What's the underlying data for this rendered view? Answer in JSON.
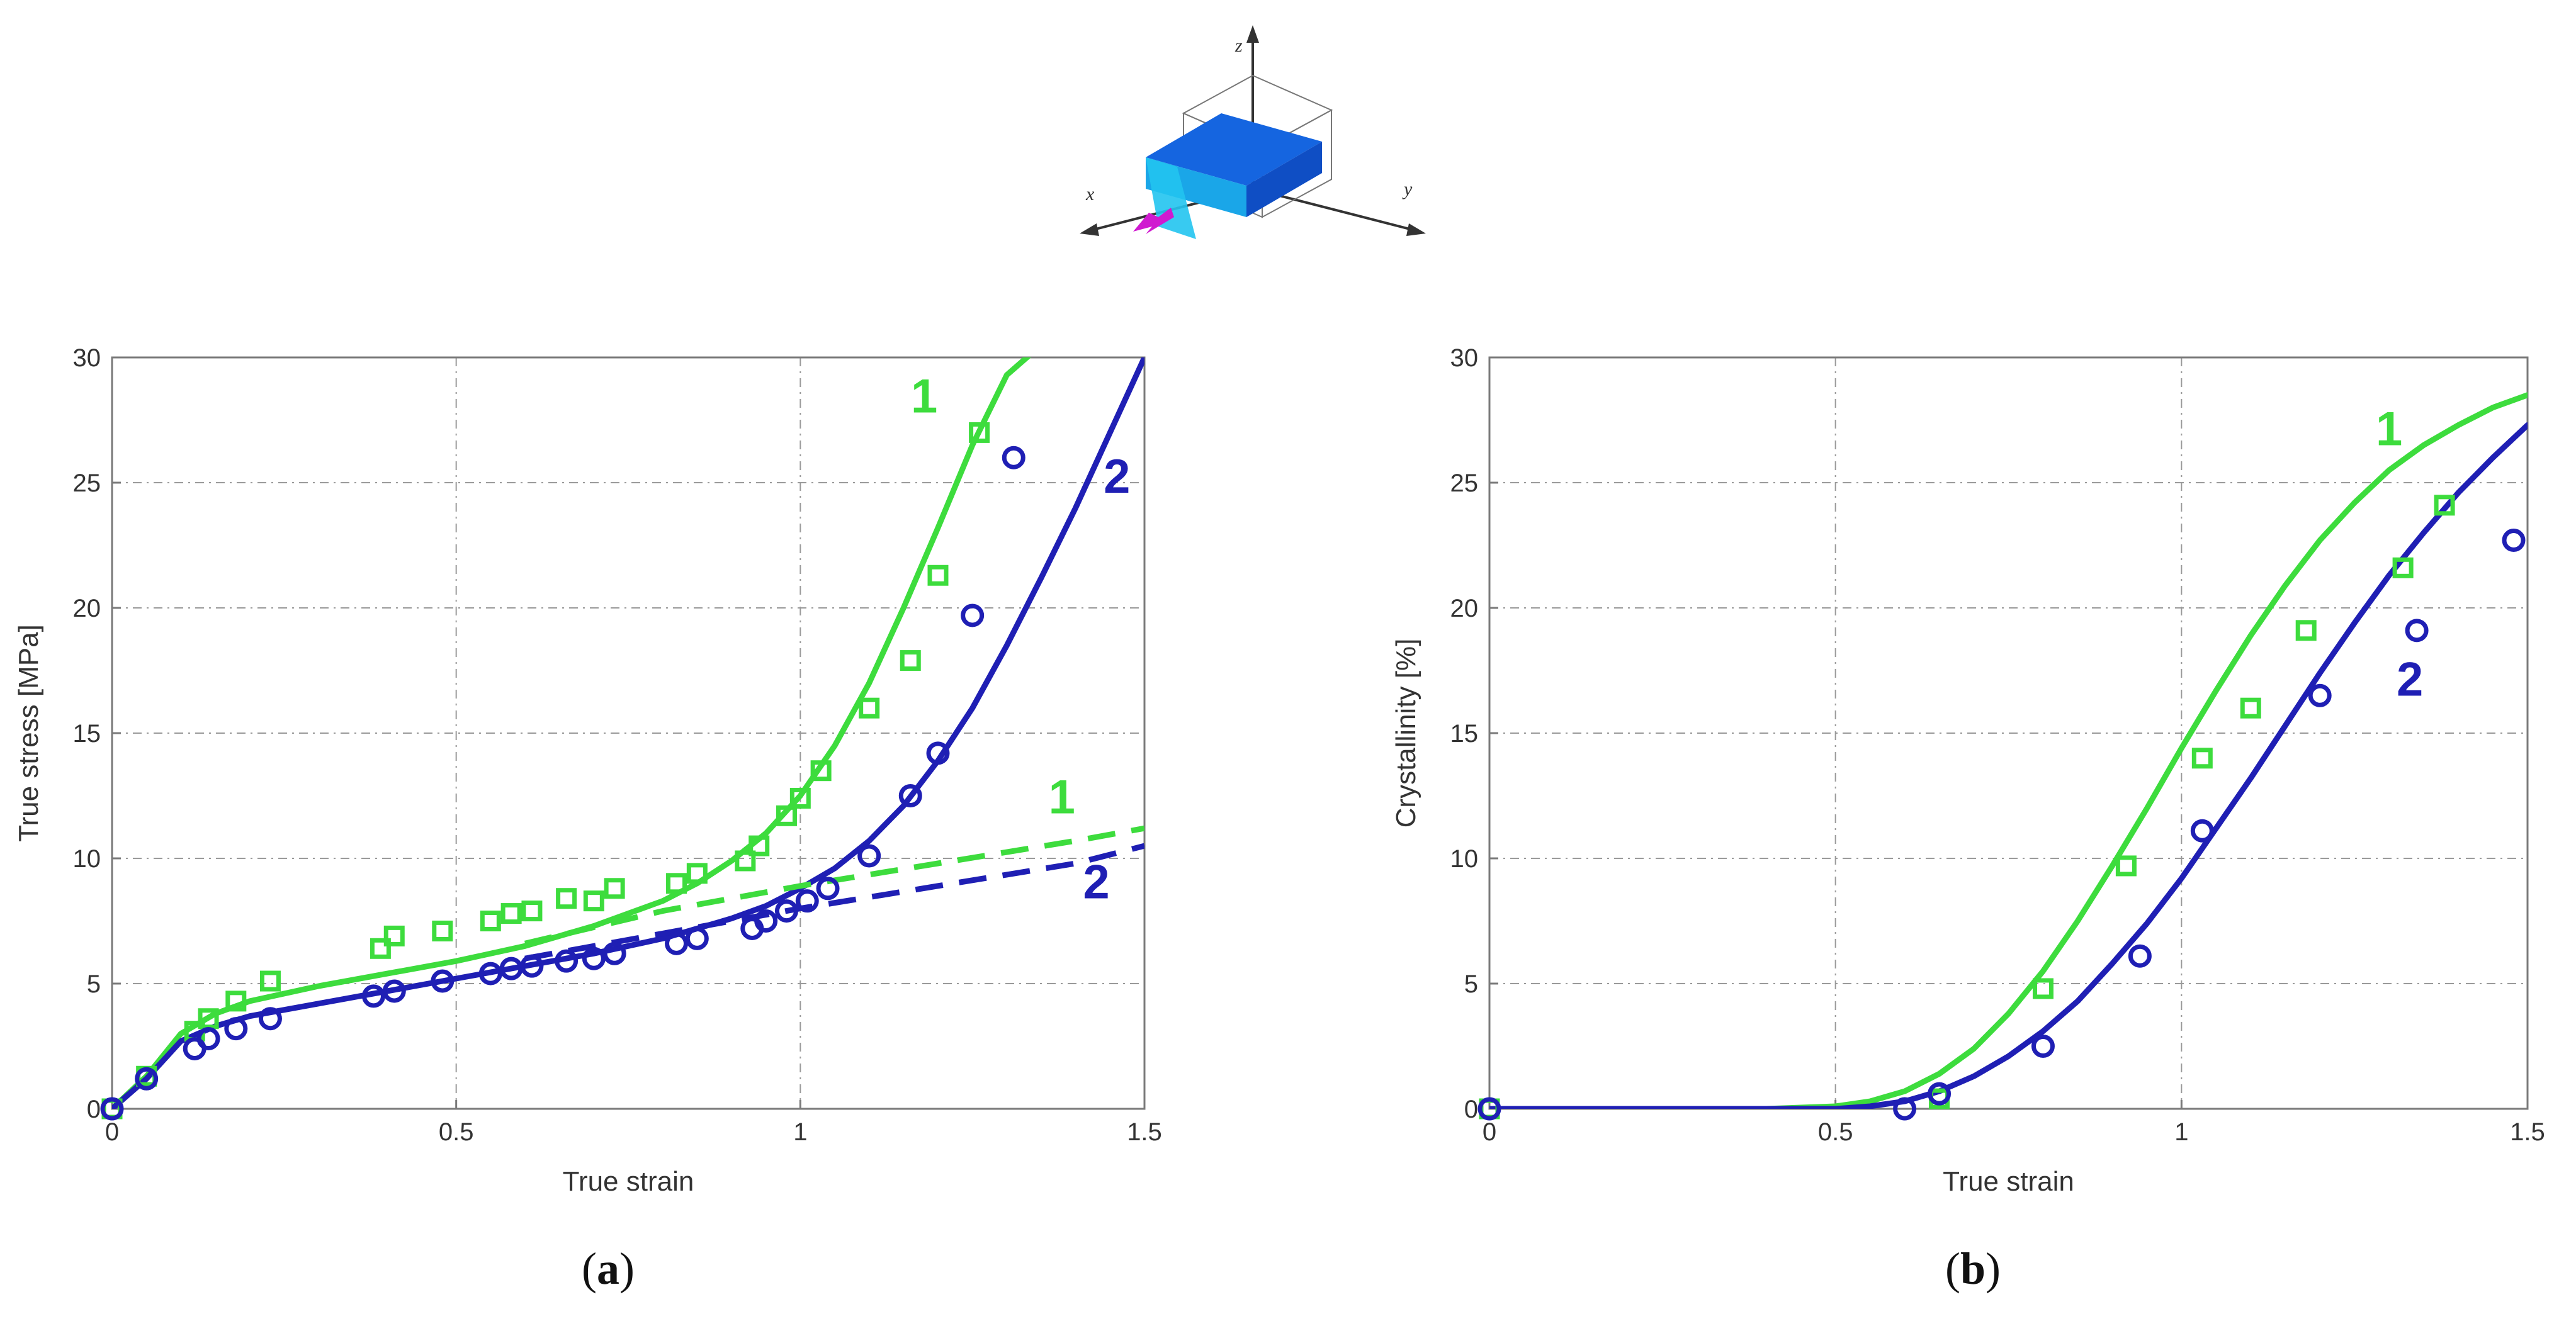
{
  "colors": {
    "green": "#3ddc3d",
    "blue": "#1f1fb4",
    "grid": "#9a9a9a",
    "frame": "#7a7a7a",
    "block_front": "#1aa6e8",
    "block_top": "#1565e0",
    "arrow": "#d01ad0"
  },
  "inset": {
    "axis_labels": {
      "x": "x",
      "y": "y",
      "z": "z"
    },
    "arrow_icon": "magenta-loading-arrow"
  },
  "chart_data": [
    {
      "type": "line",
      "caption": "(a)",
      "caption_letter": "a",
      "title": "",
      "xlabel": "True strain",
      "ylabel": "True stress [MPa]",
      "xlim": [
        0,
        1.5
      ],
      "ylim": [
        0,
        30
      ],
      "xticks": [
        0,
        0.5,
        1,
        1.5
      ],
      "xtick_labels": [
        "0",
        "0.5",
        "1",
        "1.5"
      ],
      "yticks": [
        0,
        5,
        10,
        15,
        20,
        25,
        30
      ],
      "ytick_labels": [
        "0",
        "5",
        "10",
        "15",
        "20",
        "25",
        "30"
      ],
      "grid": true,
      "series": [
        {
          "label": "1",
          "color": "green",
          "style": "solid",
          "x": [
            0,
            0.05,
            0.1,
            0.15,
            0.2,
            0.3,
            0.4,
            0.5,
            0.6,
            0.7,
            0.8,
            0.85,
            0.9,
            0.95,
            1.0,
            1.05,
            1.1,
            1.15,
            1.2,
            1.25,
            1.3,
            1.35
          ],
          "y": [
            0,
            1.3,
            3.0,
            3.8,
            4.3,
            4.9,
            5.4,
            5.9,
            6.5,
            7.3,
            8.3,
            9.0,
            9.9,
            11.0,
            12.5,
            14.5,
            17.0,
            20.0,
            23.2,
            26.5,
            29.3,
            30.5
          ]
        },
        {
          "label": "2",
          "color": "blue",
          "style": "solid",
          "x": [
            0,
            0.05,
            0.1,
            0.15,
            0.2,
            0.3,
            0.4,
            0.5,
            0.6,
            0.7,
            0.8,
            0.9,
            0.95,
            1.0,
            1.05,
            1.1,
            1.15,
            1.2,
            1.25,
            1.3,
            1.35,
            1.4,
            1.45,
            1.5
          ],
          "y": [
            0,
            1.2,
            2.7,
            3.3,
            3.7,
            4.2,
            4.7,
            5.2,
            5.7,
            6.2,
            6.8,
            7.6,
            8.1,
            8.8,
            9.6,
            10.7,
            12.1,
            13.9,
            16.0,
            18.5,
            21.2,
            24.0,
            27.0,
            30.0
          ]
        },
        {
          "label": "1",
          "color": "green",
          "style": "dashed",
          "x": [
            0.6,
            0.8,
            1.0,
            1.2,
            1.4,
            1.5
          ],
          "y": [
            6.6,
            7.9,
            8.9,
            9.8,
            10.7,
            11.2
          ]
        },
        {
          "label": "2",
          "color": "blue",
          "style": "dashed",
          "x": [
            0.6,
            0.8,
            1.0,
            1.2,
            1.4,
            1.5
          ],
          "y": [
            6.0,
            7.0,
            8.0,
            8.9,
            9.8,
            10.5
          ]
        },
        {
          "label": "1",
          "color": "green",
          "style": "square-markers",
          "x": [
            0,
            0.05,
            0.12,
            0.14,
            0.18,
            0.23,
            0.39,
            0.41,
            0.48,
            0.55,
            0.58,
            0.61,
            0.66,
            0.7,
            0.73,
            0.82,
            0.85,
            0.92,
            0.94,
            0.98,
            1.0,
            1.03,
            1.1,
            1.16,
            1.2,
            1.26
          ],
          "y": [
            0,
            1.3,
            3.1,
            3.6,
            4.3,
            5.1,
            6.4,
            6.9,
            7.1,
            7.5,
            7.8,
            7.9,
            8.4,
            8.3,
            8.8,
            9.0,
            9.4,
            9.9,
            10.5,
            11.7,
            12.4,
            13.5,
            16.0,
            17.9,
            21.3,
            27.0
          ]
        },
        {
          "label": "2",
          "color": "blue",
          "style": "circle-markers",
          "x": [
            0,
            0.05,
            0.12,
            0.14,
            0.18,
            0.23,
            0.38,
            0.41,
            0.48,
            0.55,
            0.58,
            0.61,
            0.66,
            0.7,
            0.73,
            0.82,
            0.85,
            0.93,
            0.95,
            0.98,
            1.01,
            1.04,
            1.1,
            1.16,
            1.2,
            1.25,
            1.31
          ],
          "y": [
            0,
            1.2,
            2.4,
            2.8,
            3.2,
            3.6,
            4.5,
            4.7,
            5.1,
            5.4,
            5.6,
            5.7,
            5.9,
            6.0,
            6.2,
            6.6,
            6.8,
            7.2,
            7.5,
            7.9,
            8.3,
            8.8,
            10.1,
            12.5,
            14.2,
            19.7,
            26.0
          ]
        }
      ],
      "annotations": [
        {
          "text": "1",
          "color": "green",
          "x": 1.18,
          "y": 27.8
        },
        {
          "text": "2",
          "color": "blue",
          "x": 1.46,
          "y": 24.6
        },
        {
          "text": "1",
          "color": "green",
          "x": 1.38,
          "y": 11.8
        },
        {
          "text": "2",
          "color": "blue",
          "x": 1.43,
          "y": 8.4
        }
      ]
    },
    {
      "type": "line",
      "caption": "(b)",
      "caption_letter": "b",
      "title": "",
      "xlabel": "True strain",
      "ylabel": "Crystallinity  [%]",
      "xlim": [
        0,
        1.5
      ],
      "ylim": [
        0,
        30
      ],
      "xticks": [
        0,
        0.5,
        1,
        1.5
      ],
      "xtick_labels": [
        "0",
        "0.5",
        "1",
        "1.5"
      ],
      "yticks": [
        0,
        5,
        10,
        15,
        20,
        25,
        30
      ],
      "ytick_labels": [
        "0",
        "5",
        "10",
        "15",
        "20",
        "25",
        "30"
      ],
      "grid": true,
      "series": [
        {
          "label": "1",
          "color": "green",
          "style": "solid",
          "x": [
            0,
            0.4,
            0.5,
            0.55,
            0.6,
            0.65,
            0.7,
            0.75,
            0.8,
            0.85,
            0.9,
            0.95,
            1.0,
            1.05,
            1.1,
            1.15,
            1.2,
            1.25,
            1.3,
            1.35,
            1.4,
            1.45,
            1.5
          ],
          "y": [
            0,
            0,
            0.1,
            0.3,
            0.7,
            1.4,
            2.4,
            3.8,
            5.5,
            7.5,
            9.7,
            12.0,
            14.4,
            16.7,
            18.9,
            20.9,
            22.7,
            24.2,
            25.5,
            26.5,
            27.3,
            28.0,
            28.5
          ]
        },
        {
          "label": "2",
          "color": "blue",
          "style": "solid",
          "x": [
            0,
            0.5,
            0.55,
            0.6,
            0.65,
            0.7,
            0.75,
            0.8,
            0.85,
            0.9,
            0.95,
            1.0,
            1.05,
            1.1,
            1.15,
            1.2,
            1.25,
            1.3,
            1.35,
            1.4,
            1.45,
            1.5
          ],
          "y": [
            0,
            0,
            0.1,
            0.3,
            0.7,
            1.3,
            2.1,
            3.1,
            4.3,
            5.8,
            7.4,
            9.2,
            11.2,
            13.2,
            15.3,
            17.4,
            19.4,
            21.3,
            23.0,
            24.6,
            26.0,
            27.3
          ]
        },
        {
          "label": "1",
          "color": "green",
          "style": "square-markers",
          "x": [
            0,
            0.65,
            0.8,
            0.92,
            1.03,
            1.1,
            1.18,
            1.32,
            1.38
          ],
          "y": [
            0,
            0.4,
            4.8,
            9.7,
            14.0,
            16.0,
            19.1,
            21.6,
            24.1
          ]
        },
        {
          "label": "2",
          "color": "blue",
          "style": "circle-markers",
          "x": [
            0,
            0.6,
            0.65,
            0.8,
            0.94,
            1.03,
            1.2,
            1.34,
            1.48
          ],
          "y": [
            0,
            0.0,
            0.6,
            2.5,
            6.1,
            11.1,
            16.5,
            19.1,
            22.7
          ]
        }
      ],
      "annotations": [
        {
          "text": "1",
          "color": "green",
          "x": 1.3,
          "y": 26.5
        },
        {
          "text": "2",
          "color": "blue",
          "x": 1.33,
          "y": 16.5
        }
      ]
    }
  ]
}
